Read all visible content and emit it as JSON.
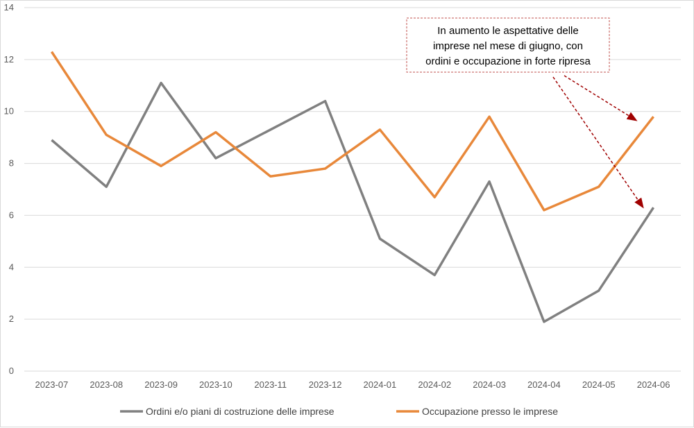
{
  "colors": {
    "series1": "#808080",
    "series2": "#e8883a",
    "grid": "#d9d9d9",
    "annotation_border": "#c0504d",
    "arrow": "#a00000"
  },
  "chart_data": {
    "type": "line",
    "categories": [
      "2023-07",
      "2023-08",
      "2023-09",
      "2023-10",
      "2023-11",
      "2023-12",
      "2024-01",
      "2024-02",
      "2024-03",
      "2024-04",
      "2024-05",
      "2024-06"
    ],
    "series": [
      {
        "name": "Ordini e/o piani di costruzione delle imprese",
        "values": [
          8.9,
          7.1,
          11.1,
          8.2,
          9.3,
          10.4,
          5.1,
          3.7,
          7.3,
          1.9,
          3.1,
          6.3
        ]
      },
      {
        "name": "Occupazione presso le imprese",
        "values": [
          12.3,
          9.1,
          7.9,
          9.2,
          7.5,
          7.8,
          9.3,
          6.7,
          9.8,
          6.2,
          7.1,
          9.8
        ]
      }
    ],
    "ylim": [
      0,
      14
    ],
    "yticks": [
      0,
      2,
      4,
      6,
      8,
      10,
      12,
      14
    ],
    "grid": true,
    "legend_position": "bottom",
    "annotation": {
      "lines": [
        "In aumento le aspettative delle",
        "imprese nel mese di giugno, con",
        "ordini e occupazione in forte ripresa"
      ]
    }
  }
}
